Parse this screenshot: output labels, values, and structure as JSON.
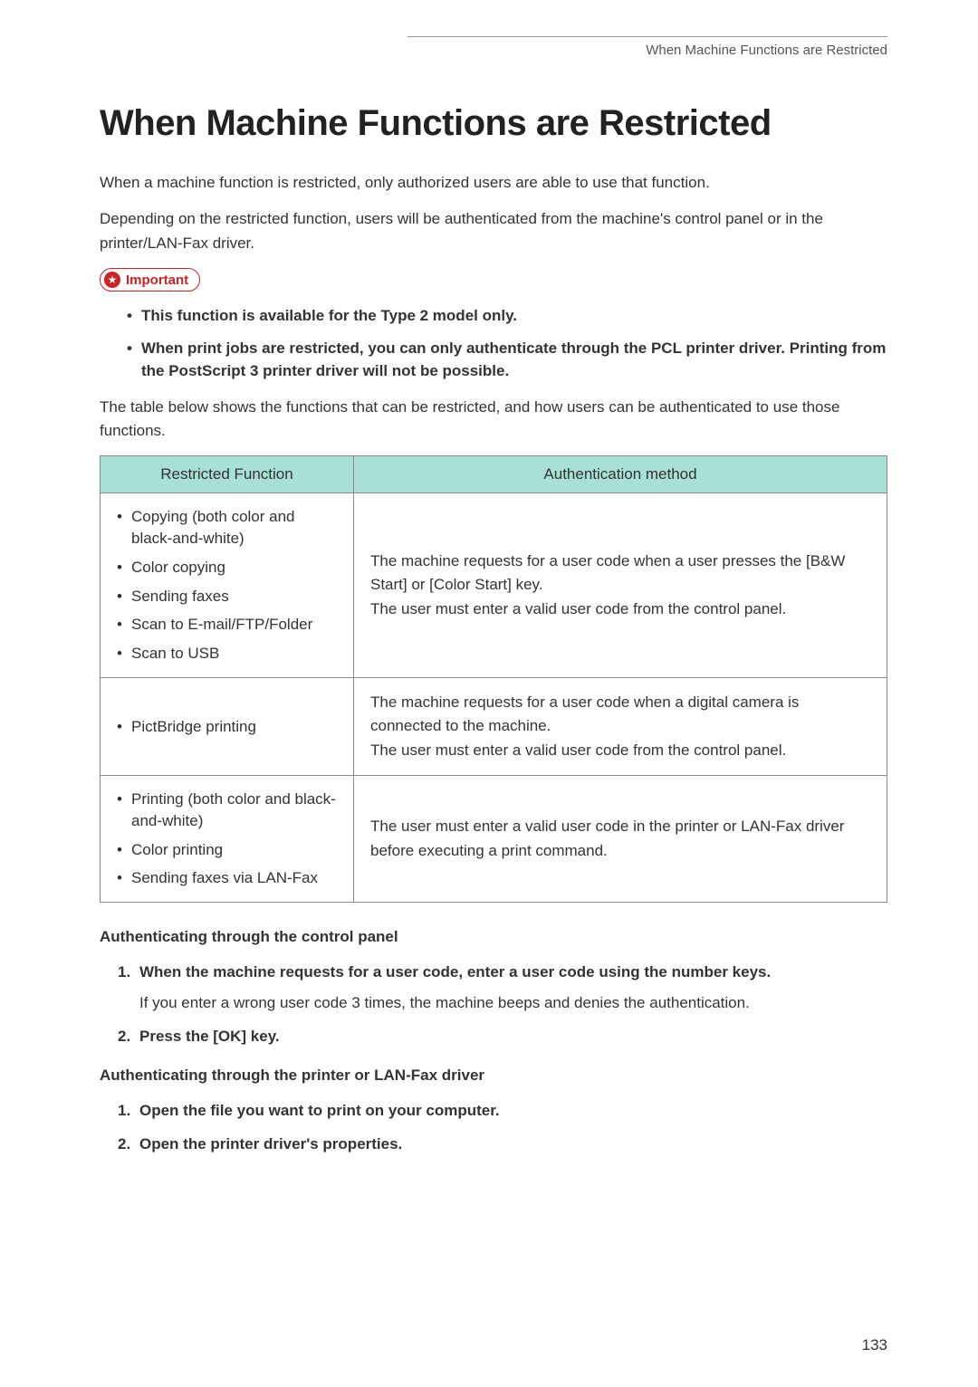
{
  "header": {
    "running_head": "When Machine Functions are Restricted"
  },
  "title": "When Machine Functions are Restricted",
  "intro": {
    "p1": "When a machine function is restricted, only authorized users are able to use that function.",
    "p2": "Depending on the restricted function, users will be authenticated from the machine's control panel or in the printer/LAN-Fax driver."
  },
  "important": {
    "label": "Important",
    "items": [
      "This function is available for the Type 2 model only.",
      "When print jobs are restricted, you can only authenticate through the PCL printer driver. Printing from the PostScript 3 printer driver will not be possible."
    ]
  },
  "table_intro": "The table below shows the functions that can be restricted, and how users can be authenticated to use those functions.",
  "table": {
    "columns": [
      "Restricted Function",
      "Authentication method"
    ],
    "header_bg": "#a8e0d8",
    "border_color": "#888888",
    "rows": [
      {
        "functions": [
          "Copying (both color and black-and-white)",
          "Color copying",
          "Sending faxes",
          "Scan to E-mail/FTP/Folder",
          "Scan to USB"
        ],
        "method_lines": [
          "The machine requests for a user code when a user presses the [B&W Start] or [Color Start] key.",
          "The user must enter a valid user code from the control panel."
        ]
      },
      {
        "functions": [
          "PictBridge printing"
        ],
        "method_lines": [
          "The machine requests for a user code when a digital camera is connected to the machine.",
          "The user must enter a valid user code from the control panel."
        ]
      },
      {
        "functions": [
          "Printing (both color and black-and-white)",
          "Color printing",
          "Sending faxes via LAN-Fax"
        ],
        "method_lines": [
          "The user must enter a valid user code in the printer or LAN-Fax driver before executing a print command."
        ]
      }
    ]
  },
  "sections": {
    "control_panel": {
      "heading": "Authenticating through the control panel",
      "steps": [
        {
          "num": "1.",
          "text": "When the machine requests for a user code, enter a user code using the number keys.",
          "sub": "If you enter a wrong user code 3 times, the machine beeps and denies the authentication."
        },
        {
          "num": "2.",
          "text": "Press the [OK] key."
        }
      ]
    },
    "driver": {
      "heading": "Authenticating through the printer or LAN-Fax driver",
      "steps": [
        {
          "num": "1.",
          "text": "Open the file you want to print on your computer."
        },
        {
          "num": "2.",
          "text": "Open the printer driver's properties."
        }
      ]
    }
  },
  "page_number": "133"
}
